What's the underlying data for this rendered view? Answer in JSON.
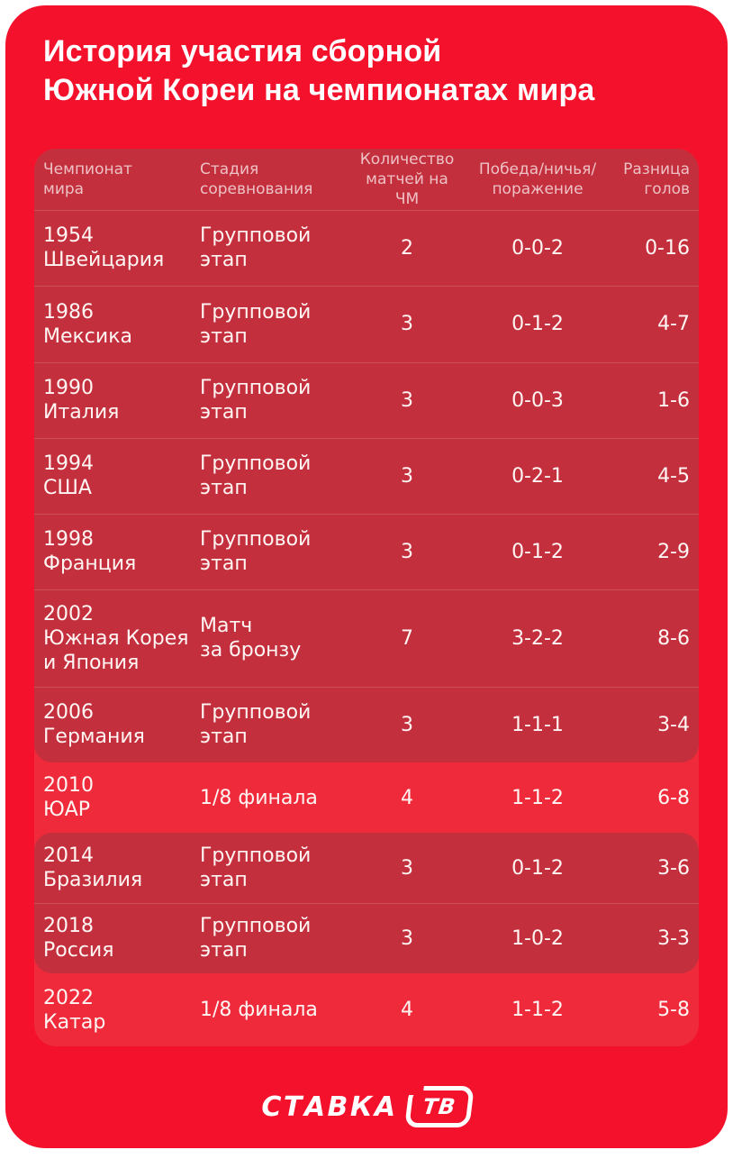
{
  "page": {
    "background": "#ffffff"
  },
  "card": {
    "background": "#F4112C"
  },
  "title": {
    "line1": "История участия сборной",
    "line2": "Южной Кореи на чемпионатах мира"
  },
  "table": {
    "colors": {
      "panel_dark": "#C42F3D",
      "row_highlight": "#EE2A3B",
      "separator": "rgba(255,255,255,0.16)",
      "header_text": "rgba(255,255,255,0.70)",
      "body_text": "#FFF6F4"
    },
    "headers": [
      {
        "line1": "Чемпионат",
        "line2": "мира"
      },
      {
        "line1": "Стадия",
        "line2": "соревнования"
      },
      {
        "line1": "Количество",
        "line2": "матчей на ЧМ"
      },
      {
        "line1": "Победа/ничья/",
        "line2": "поражение"
      },
      {
        "line1": "Разница",
        "line2": "голов"
      }
    ],
    "rows": [
      {
        "tournament": [
          "1954",
          "Швейцария"
        ],
        "stage": [
          "Групповой",
          "этап"
        ],
        "matches": "2",
        "wdl": "0-0-2",
        "goal_diff": "0-16",
        "highlight": false
      },
      {
        "tournament": [
          "1986",
          "Мексика"
        ],
        "stage": [
          "Групповой",
          "этап"
        ],
        "matches": "3",
        "wdl": "0-1-2",
        "goal_diff": "4-7",
        "highlight": false
      },
      {
        "tournament": [
          "1990",
          "Италия"
        ],
        "stage": [
          "Групповой",
          "этап"
        ],
        "matches": "3",
        "wdl": "0-0-3",
        "goal_diff": "1-6",
        "highlight": false
      },
      {
        "tournament": [
          "1994",
          "США"
        ],
        "stage": [
          "Групповой",
          "этап"
        ],
        "matches": "3",
        "wdl": "0-2-1",
        "goal_diff": "4-5",
        "highlight": false
      },
      {
        "tournament": [
          "1998",
          "Франция"
        ],
        "stage": [
          "Групповой",
          "этап"
        ],
        "matches": "3",
        "wdl": "0-1-2",
        "goal_diff": "2-9",
        "highlight": false
      },
      {
        "tournament": [
          "2002",
          "Южная Корея",
          "и Япония"
        ],
        "stage": [
          "Матч",
          "за бронзу"
        ],
        "matches": "7",
        "wdl": "3-2-2",
        "goal_diff": "8-6",
        "highlight": false
      },
      {
        "tournament": [
          "2006",
          "Германия"
        ],
        "stage": [
          "Групповой",
          "этап"
        ],
        "matches": "3",
        "wdl": "1-1-1",
        "goal_diff": "3-4",
        "highlight": false
      },
      {
        "tournament": [
          "2010",
          "ЮАР"
        ],
        "stage": [
          "1/8 финала"
        ],
        "matches": "4",
        "wdl": "1-1-2",
        "goal_diff": "6-8",
        "highlight": true
      },
      {
        "tournament": [
          "2014",
          "Бразилия"
        ],
        "stage": [
          "Групповой",
          "этап"
        ],
        "matches": "3",
        "wdl": "0-1-2",
        "goal_diff": "3-6",
        "highlight": false
      },
      {
        "tournament": [
          "2018",
          "Россия"
        ],
        "stage": [
          "Групповой",
          "этап"
        ],
        "matches": "3",
        "wdl": "1-0-2",
        "goal_diff": "3-3",
        "highlight": false
      },
      {
        "tournament": [
          "2022",
          "Катар"
        ],
        "stage": [
          "1/8 финала"
        ],
        "matches": "4",
        "wdl": "1-1-2",
        "goal_diff": "5-8",
        "highlight": true
      }
    ]
  },
  "footer": {
    "logo_text": "СТАВКА",
    "logo_badge": "ТВ"
  },
  "chart_data": {
    "type": "table",
    "title": "История участия сборной Южной Кореи на чемпионатах мира",
    "columns": [
      "Чемпионат мира",
      "Стадия соревнования",
      "Количество матчей на ЧМ",
      "Победа/ничья/поражение",
      "Разница голов"
    ],
    "rows": [
      [
        "1954 Швейцария",
        "Групповой этап",
        2,
        "0-0-2",
        "0-16"
      ],
      [
        "1986 Мексика",
        "Групповой этап",
        3,
        "0-1-2",
        "4-7"
      ],
      [
        "1990 Италия",
        "Групповой этап",
        3,
        "0-0-3",
        "1-6"
      ],
      [
        "1994 США",
        "Групповой этап",
        3,
        "0-2-1",
        "4-5"
      ],
      [
        "1998 Франция",
        "Групповой этап",
        3,
        "0-1-2",
        "2-9"
      ],
      [
        "2002 Южная Корея и Япония",
        "Матч за бронзу",
        7,
        "3-2-2",
        "8-6"
      ],
      [
        "2006 Германия",
        "Групповой этап",
        3,
        "1-1-1",
        "3-4"
      ],
      [
        "2010 ЮАР",
        "1/8 финала",
        4,
        "1-1-2",
        "6-8"
      ],
      [
        "2014 Бразилия",
        "Групповой этап",
        3,
        "0-1-2",
        "3-6"
      ],
      [
        "2018 Россия",
        "Групповой этап",
        3,
        "1-0-2",
        "3-3"
      ],
      [
        "2022 Катар",
        "1/8 финала",
        4,
        "1-1-2",
        "5-8"
      ]
    ],
    "highlighted_rows": [
      7,
      10
    ],
    "legend_position": "none",
    "grid": false
  }
}
